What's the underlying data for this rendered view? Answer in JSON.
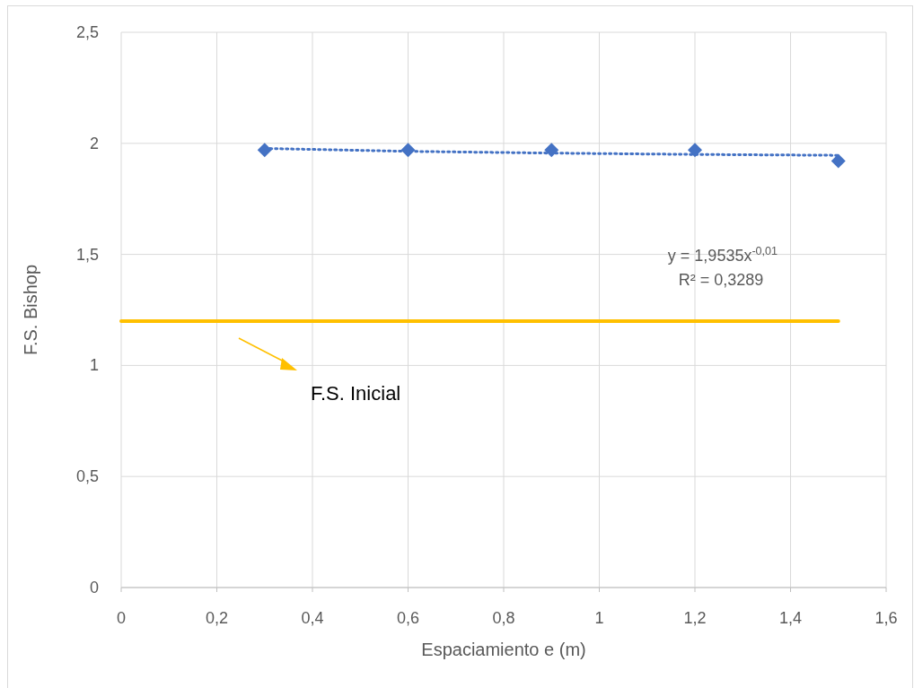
{
  "chart_data": {
    "type": "scatter",
    "xlabel": "Espaciamiento e (m)",
    "ylabel": "F.S. Bishop",
    "series": [
      {
        "color": "#4472c4",
        "marker": "diamond",
        "x": [
          0.3,
          0.6,
          0.9,
          1.2,
          1.5
        ],
        "values": [
          1.97,
          1.97,
          1.97,
          1.97,
          1.92
        ]
      },
      {
        "type": "line",
        "color": "#4472c4",
        "marker": "none",
        "line_style": "dotted",
        "x": [
          0.3,
          0.6,
          0.9,
          1.2,
          1.5
        ],
        "values": [
          1.977,
          1.964,
          1.956,
          1.95,
          1.946
        ]
      },
      {
        "type": "line",
        "color": "#ffc000",
        "marker": "none",
        "line_style": "solid",
        "x": [
          0,
          1.5
        ],
        "values": [
          1.2,
          1.2
        ]
      }
    ],
    "xlim": [
      0,
      1.6
    ],
    "ylim": [
      0,
      2.5
    ],
    "xticks": [
      0,
      {
        "value": 0.2,
        "label": "0,2"
      },
      {
        "value": 0.4,
        "label": "0,4"
      },
      {
        "value": 0.6,
        "label": "0,6"
      },
      {
        "value": 0.8,
        "label": "0,8"
      },
      1,
      {
        "value": 1.2,
        "label": "1,2"
      },
      {
        "value": 1.4,
        "label": "1,4"
      },
      {
        "value": 1.6,
        "label": "1,6"
      }
    ],
    "yticks": [
      0,
      {
        "value": 0.5,
        "label": "0,5"
      },
      1,
      {
        "value": 1.5,
        "label": "1,5"
      },
      2,
      {
        "value": 2.5,
        "label": "2,5"
      }
    ],
    "grid": true,
    "annotations": [
      "y = 1,9535x$^{-0,01}$",
      "R² = 0,3289",
      "F.S. Inicial"
    ]
  }
}
